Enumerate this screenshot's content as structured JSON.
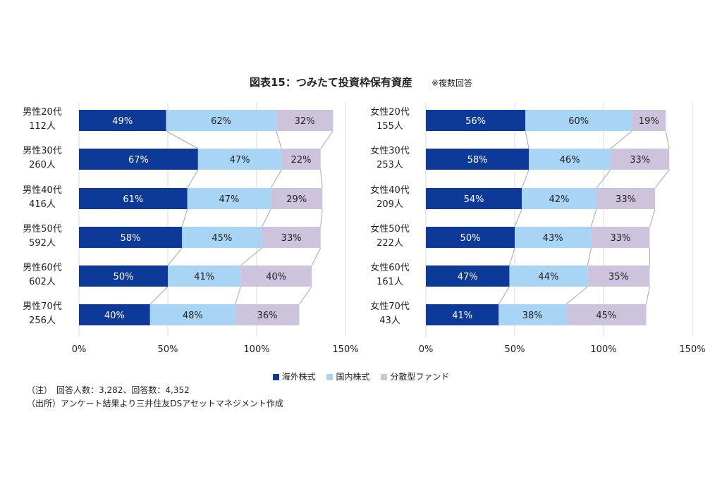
{
  "title": "図表15：つみたて投資枠保有資産",
  "subtitle": "※複数回答",
  "colors": {
    "overseas": "#0d3a99",
    "domestic": "#a8d4f5",
    "fund": "#cdc3dd",
    "grid": "#d9d9d9",
    "connector": "#a6a6a6"
  },
  "legend": [
    "海外株式",
    "国内株式",
    "分散型ファンド"
  ],
  "notes": [
    "（注）　回答人数：3,282、回答数：4,352",
    "（出所）アンケート結果より三井住友DSアセットマネジメント作成"
  ],
  "chart_data": [
    {
      "type": "bar",
      "stacked": true,
      "orientation": "horizontal",
      "categories": [
        "男性20代\n112人",
        "男性30代\n260人",
        "男性40代\n416人",
        "男性50代\n592人",
        "男性60代\n602人",
        "男性70代\n256人"
      ],
      "series": [
        {
          "name": "海外株式",
          "values": [
            49,
            67,
            61,
            58,
            50,
            40
          ]
        },
        {
          "name": "国内株式",
          "values": [
            62,
            47,
            47,
            45,
            41,
            48
          ]
        },
        {
          "name": "分散型ファンド",
          "values": [
            32,
            22,
            29,
            33,
            40,
            36
          ]
        }
      ],
      "xlim": [
        0,
        150
      ],
      "xticks": [
        "0%",
        "50%",
        "100%",
        "150%"
      ],
      "grid": true
    },
    {
      "type": "bar",
      "stacked": true,
      "orientation": "horizontal",
      "categories": [
        "女性20代\n155人",
        "女性30代\n253人",
        "女性40代\n209人",
        "女性50代\n222人",
        "女性60代\n161人",
        "女性70代\n43人"
      ],
      "series": [
        {
          "name": "海外株式",
          "values": [
            56,
            58,
            54,
            50,
            47,
            41
          ]
        },
        {
          "name": "国内株式",
          "values": [
            60,
            46,
            42,
            43,
            44,
            38
          ]
        },
        {
          "name": "分散型ファンド",
          "values": [
            19,
            33,
            33,
            33,
            35,
            45
          ]
        }
      ],
      "xlim": [
        0,
        150
      ],
      "xticks": [
        "0%",
        "50%",
        "100%",
        "150%"
      ],
      "grid": true
    }
  ]
}
